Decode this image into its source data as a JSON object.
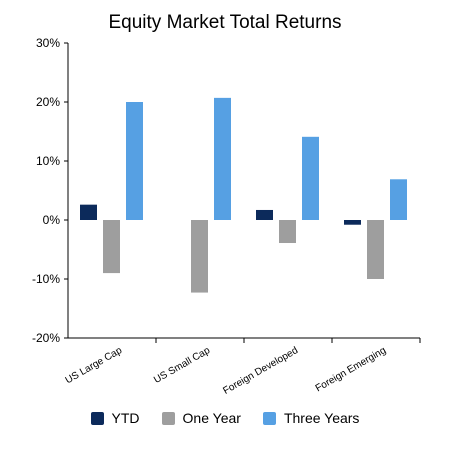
{
  "chart_data": {
    "type": "bar",
    "title": "Equity Market Total Returns",
    "xlabel": "",
    "ylabel": "",
    "categories": [
      "US Large Cap",
      "US Small Cap",
      "Foreign Developed",
      "Foreign Emerging"
    ],
    "series": [
      {
        "name": "YTD",
        "color": "#0c2a5b",
        "values": [
          2.6,
          0.0,
          1.7,
          -0.8
        ]
      },
      {
        "name": "One Year",
        "color": "#9e9e9e",
        "values": [
          -9.0,
          -12.3,
          -3.9,
          -10.0
        ]
      },
      {
        "name": "Three Years",
        "color": "#56a0e3",
        "values": [
          20.0,
          20.7,
          14.1,
          6.9
        ]
      }
    ],
    "ylim": [
      -20,
      30
    ],
    "yticks": [
      30,
      20,
      10,
      0,
      -10,
      -20
    ],
    "ytick_labels": [
      "30%",
      "20%",
      "10%",
      "0%",
      "-10%",
      "-20%"
    ],
    "grid": false,
    "legend_position": "bottom"
  }
}
